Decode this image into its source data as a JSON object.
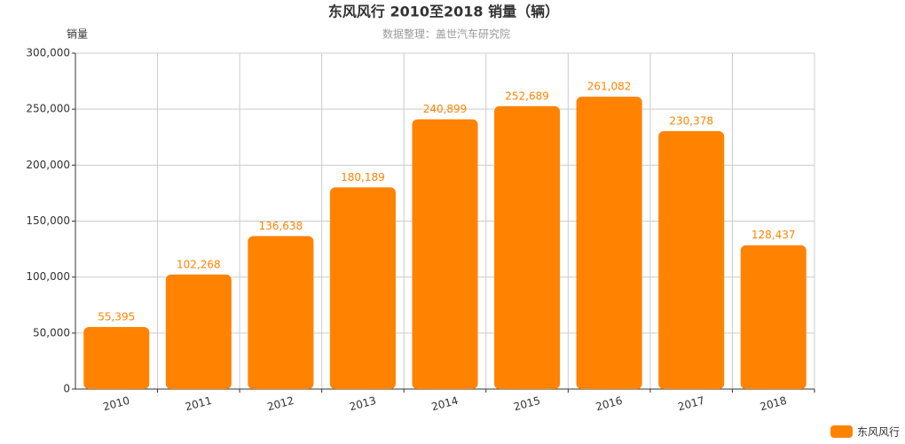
{
  "chart_data": {
    "type": "bar",
    "title": "东风风行 2010至2018 销量（辆）",
    "subtitle": "数据整理：盖世汽车研究院",
    "y_label": "销量",
    "categories": [
      "2010",
      "2011",
      "2012",
      "2013",
      "2014",
      "2015",
      "2016",
      "2017",
      "2018"
    ],
    "series": [
      {
        "name": "东风风行",
        "color": "#ff8300",
        "values": [
          55395,
          102268,
          136638,
          180189,
          240899,
          252689,
          261082,
          230378,
          128437
        ],
        "value_labels": [
          "55,395",
          "102,268",
          "136,638",
          "180,189",
          "240,899",
          "252,689",
          "261,082",
          "230,378",
          "128,437"
        ]
      }
    ],
    "ylim": [
      0,
      300000
    ],
    "yticks": [
      0,
      {
        "value": 50000,
        "label": "50,000"
      },
      {
        "value": 100000,
        "label": "100,000"
      },
      {
        "value": 150000,
        "label": "150,000"
      },
      {
        "value": 200000,
        "label": "200,000"
      },
      {
        "value": 250000,
        "label": "250,000"
      },
      {
        "value": 300000,
        "label": "300,000"
      }
    ],
    "grid": true,
    "legend": "bottom-right"
  }
}
